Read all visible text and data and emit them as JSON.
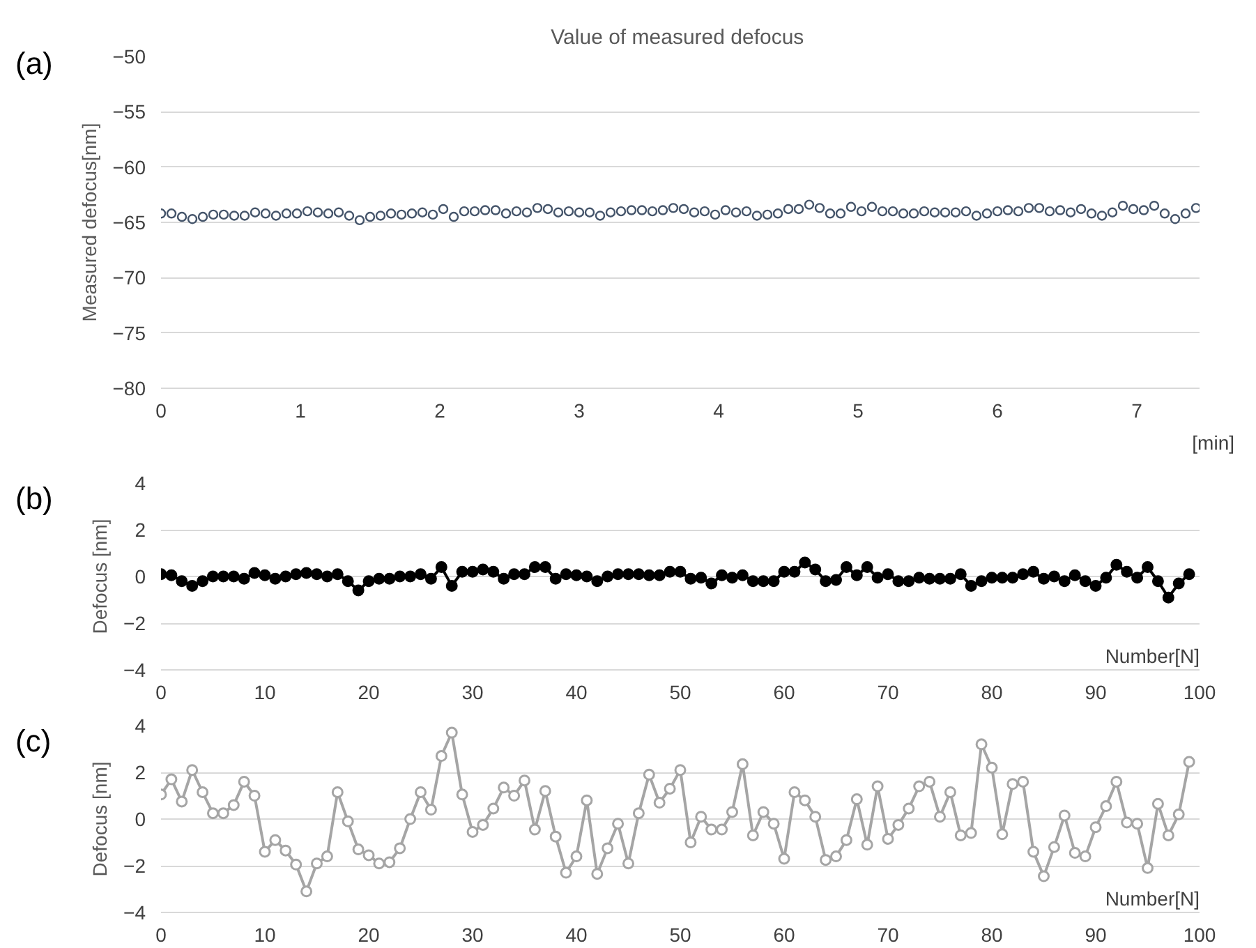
{
  "chart_data": [
    {
      "type": "scatter",
      "title": "Value of  measured defocus",
      "ylabel": "Measured defocus[nm]",
      "xlabel": "[min]",
      "annotations": [
        "(a)"
      ],
      "marker": "circle",
      "grid": "y",
      "xlim": [
        0,
        7.45
      ],
      "xticks": [
        0,
        1,
        2,
        3,
        4,
        5,
        6,
        7
      ],
      "ylim": [
        -80,
        -50
      ],
      "yticks": [
        -80,
        -75,
        -70,
        -65,
        -60,
        -55,
        -50
      ],
      "series": [
        {
          "color": "#44546a",
          "x": [
            0,
            0.075,
            0.15,
            0.225,
            0.3,
            0.375,
            0.45,
            0.525,
            0.6,
            0.675,
            0.75,
            0.825,
            0.9,
            0.975,
            1.05,
            1.125,
            1.2,
            1.275,
            1.35,
            1.425,
            1.5,
            1.575,
            1.65,
            1.725,
            1.8,
            1.875,
            1.95,
            2.025,
            2.1,
            2.175,
            2.25,
            2.325,
            2.4,
            2.475,
            2.55,
            2.625,
            2.7,
            2.775,
            2.85,
            2.925,
            3.0,
            3.075,
            3.15,
            3.225,
            3.3,
            3.375,
            3.45,
            3.525,
            3.6,
            3.675,
            3.75,
            3.825,
            3.9,
            3.975,
            4.05,
            4.125,
            4.2,
            4.275,
            4.35,
            4.425,
            4.5,
            4.575,
            4.65,
            4.725,
            4.8,
            4.875,
            4.95,
            5.025,
            5.1,
            5.175,
            5.25,
            5.325,
            5.4,
            5.475,
            5.55,
            5.625,
            5.7,
            5.775,
            5.85,
            5.925,
            6.0,
            6.075,
            6.15,
            6.225,
            6.3,
            6.375,
            6.45,
            6.525,
            6.6,
            6.675,
            6.75,
            6.825,
            6.9,
            6.975,
            7.05,
            7.125,
            7.2,
            7.275,
            7.35,
            7.425
          ],
          "values": [
            -64.2,
            -64.2,
            -64.5,
            -64.7,
            -64.5,
            -64.3,
            -64.3,
            -64.4,
            -64.4,
            -64.1,
            -64.2,
            -64.4,
            -64.2,
            -64.2,
            -64.0,
            -64.1,
            -64.2,
            -64.1,
            -64.4,
            -64.8,
            -64.5,
            -64.4,
            -64.2,
            -64.3,
            -64.2,
            -64.1,
            -64.3,
            -63.8,
            -64.5,
            -64.0,
            -64.0,
            -63.9,
            -63.9,
            -64.2,
            -64.0,
            -64.1,
            -63.7,
            -63.8,
            -64.1,
            -64.0,
            -64.1,
            -64.1,
            -64.4,
            -64.1,
            -64.0,
            -63.9,
            -63.9,
            -64.0,
            -63.9,
            -63.7,
            -63.8,
            -64.1,
            -64.0,
            -64.3,
            -63.9,
            -64.1,
            -64.0,
            -64.4,
            -64.3,
            -64.2,
            -63.8,
            -63.8,
            -63.4,
            -63.7,
            -64.2,
            -64.2,
            -63.6,
            -64.0,
            -63.6,
            -64.0,
            -64.0,
            -64.2,
            -64.2,
            -64.0,
            -64.1,
            -64.1,
            -64.1,
            -64.0,
            -64.4,
            -64.2,
            -64.0,
            -63.9,
            -64.0,
            -63.7,
            -63.7,
            -64.0,
            -63.9,
            -64.1,
            -63.8,
            -64.2,
            -64.4,
            -64.1,
            -63.5,
            -63.8,
            -63.9,
            -63.5,
            -64.2,
            -64.7,
            -64.2,
            -63.7
          ]
        }
      ]
    },
    {
      "type": "line",
      "ylabel": "Defocus [nm]",
      "xlabel": "Number[N]",
      "annotations": [
        "(b)"
      ],
      "marker": "circle",
      "grid": "y",
      "xlim": [
        0,
        100
      ],
      "xticks": [
        0,
        10,
        20,
        30,
        40,
        50,
        60,
        70,
        80,
        90,
        100
      ],
      "ylim": [
        -4,
        4
      ],
      "yticks": [
        -4,
        -2,
        0,
        2,
        4
      ],
      "series": [
        {
          "color": "#000000",
          "x": [
            0,
            1,
            2,
            3,
            4,
            5,
            6,
            7,
            8,
            9,
            10,
            11,
            12,
            13,
            14,
            15,
            16,
            17,
            18,
            19,
            20,
            21,
            22,
            23,
            24,
            25,
            26,
            27,
            28,
            29,
            30,
            31,
            32,
            33,
            34,
            35,
            36,
            37,
            38,
            39,
            40,
            41,
            42,
            43,
            44,
            45,
            46,
            47,
            48,
            49,
            50,
            51,
            52,
            53,
            54,
            55,
            56,
            57,
            58,
            59,
            60,
            61,
            62,
            63,
            64,
            65,
            66,
            67,
            68,
            69,
            70,
            71,
            72,
            73,
            74,
            75,
            76,
            77,
            78,
            79,
            80,
            81,
            82,
            83,
            84,
            85,
            86,
            87,
            88,
            89,
            90,
            91,
            92,
            93,
            94,
            95,
            96,
            97,
            98,
            99
          ],
          "values": [
            0.1,
            0.05,
            -0.2,
            -0.4,
            -0.2,
            0,
            0,
            0,
            -0.1,
            0.15,
            0.05,
            -0.1,
            0,
            0.1,
            0.15,
            0.1,
            0,
            0.1,
            -0.2,
            -0.6,
            -0.2,
            -0.1,
            -0.1,
            0,
            0,
            0.1,
            -0.1,
            0.4,
            -0.4,
            0.2,
            0.2,
            0.3,
            0.2,
            -0.1,
            0.1,
            0.1,
            0.4,
            0.4,
            -0.1,
            0.1,
            0.05,
            0,
            -0.2,
            0,
            0.1,
            0.1,
            0.1,
            0.05,
            0.05,
            0.2,
            0.2,
            -0.1,
            -0.05,
            -0.3,
            0.05,
            -0.05,
            0.05,
            -0.2,
            -0.2,
            -0.2,
            0.2,
            0.2,
            0.6,
            0.3,
            -0.2,
            -0.15,
            0.4,
            0.05,
            0.4,
            -0.05,
            0.1,
            -0.2,
            -0.2,
            -0.05,
            -0.1,
            -0.1,
            -0.1,
            0.1,
            -0.4,
            -0.2,
            -0.05,
            -0.05,
            -0.05,
            0.1,
            0.2,
            -0.1,
            0,
            -0.2,
            0.05,
            -0.2,
            -0.4,
            -0.05,
            0.5,
            0.2,
            -0.05,
            0.4,
            -0.2,
            -0.9,
            -0.3,
            0.1
          ]
        }
      ]
    },
    {
      "type": "line",
      "ylabel": "Defocus [nm]",
      "xlabel": "Number[N]",
      "annotations": [
        "(c)"
      ],
      "marker": "circle",
      "grid": "y",
      "xlim": [
        0,
        100
      ],
      "xticks": [
        0,
        10,
        20,
        30,
        40,
        50,
        60,
        70,
        80,
        90,
        100
      ],
      "ylim": [
        -4,
        4
      ],
      "yticks": [
        -4,
        -2,
        0,
        2,
        4
      ],
      "series": [
        {
          "color": "#a5a5a5",
          "x": [
            0,
            1,
            2,
            3,
            4,
            5,
            6,
            7,
            8,
            9,
            10,
            11,
            12,
            13,
            14,
            15,
            16,
            17,
            18,
            19,
            20,
            21,
            22,
            23,
            24,
            25,
            26,
            27,
            28,
            29,
            30,
            31,
            32,
            33,
            34,
            35,
            36,
            37,
            38,
            39,
            40,
            41,
            42,
            43,
            44,
            45,
            46,
            47,
            48,
            49,
            50,
            51,
            52,
            53,
            54,
            55,
            56,
            57,
            58,
            59,
            60,
            61,
            62,
            63,
            64,
            65,
            66,
            67,
            68,
            69,
            70,
            71,
            72,
            73,
            74,
            75,
            76,
            77,
            78,
            79,
            80,
            81,
            82,
            83,
            84,
            85,
            86,
            87,
            88,
            89,
            90,
            91,
            92,
            93,
            94,
            95,
            96,
            97,
            98,
            99
          ],
          "values": [
            1.05,
            1.7,
            0.75,
            2.1,
            1.15,
            0.25,
            0.25,
            0.6,
            1.6,
            1.0,
            -1.4,
            -0.9,
            -1.35,
            -1.95,
            -3.1,
            -1.9,
            -1.6,
            1.15,
            -0.1,
            -1.3,
            -1.55,
            -1.9,
            -1.85,
            -1.25,
            0.0,
            1.15,
            0.4,
            2.7,
            3.7,
            1.05,
            -0.55,
            -0.25,
            0.45,
            1.35,
            1.0,
            1.65,
            -0.45,
            1.2,
            -0.75,
            -2.3,
            -1.6,
            0.8,
            -2.35,
            -1.25,
            -0.2,
            -1.9,
            0.25,
            1.9,
            0.7,
            1.3,
            2.1,
            -1.0,
            0.1,
            -0.45,
            -0.45,
            0.3,
            2.35,
            -0.7,
            0.3,
            -0.2,
            -1.7,
            1.15,
            0.8,
            0.1,
            -1.75,
            -1.6,
            -0.9,
            0.85,
            -1.1,
            1.4,
            -0.85,
            -0.25,
            0.45,
            1.4,
            1.6,
            0.1,
            1.15,
            -0.7,
            -0.6,
            3.2,
            2.2,
            -0.65,
            1.5,
            1.6,
            -1.4,
            -2.45,
            -1.2,
            0.15,
            -1.45,
            -1.6,
            -0.35,
            0.55,
            1.6,
            -0.15,
            -0.2,
            -2.1,
            0.65,
            -0.7,
            0.2,
            2.45
          ]
        }
      ]
    }
  ]
}
